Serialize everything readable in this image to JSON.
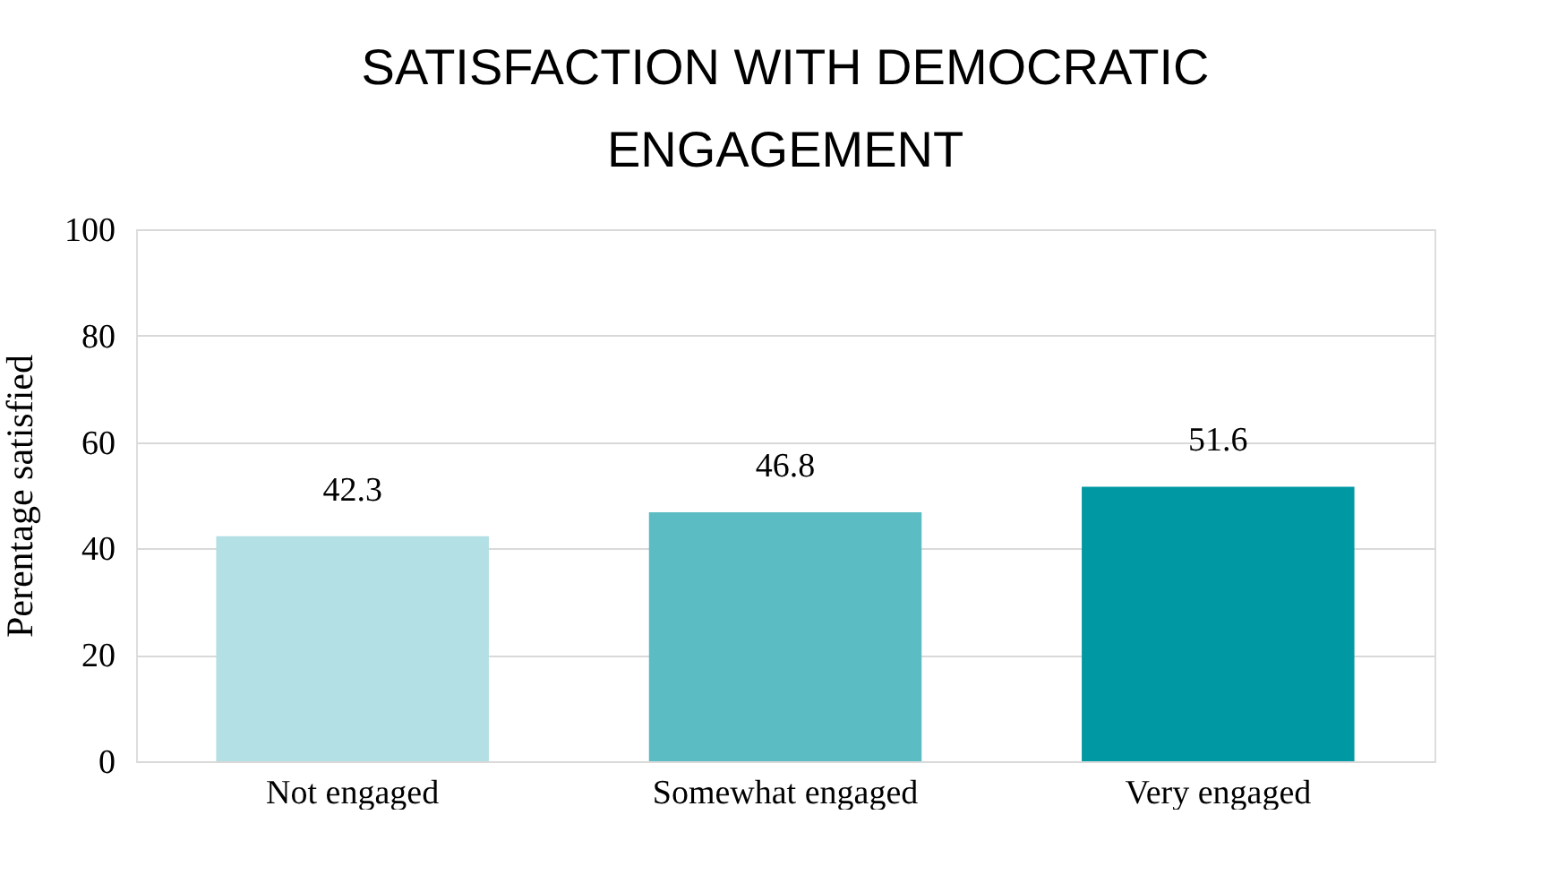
{
  "chart_data": {
    "type": "bar",
    "title": [
      "SATISFACTION WITH DEMOCRATIC",
      "ENGAGEMENT"
    ],
    "ylabel": "Perentage satisfied",
    "categories": [
      "Not engaged",
      "Somewhat engaged",
      "Very engaged"
    ],
    "values": [
      42.3,
      46.8,
      51.6
    ],
    "colors": [
      "#b2e0e4",
      "#5bbcc4",
      "#0099a3"
    ],
    "ylim": [
      0,
      100
    ],
    "yticks": [
      0,
      20,
      40,
      60,
      80,
      100
    ],
    "grid": "y",
    "data_labels": true,
    "legend": false
  }
}
